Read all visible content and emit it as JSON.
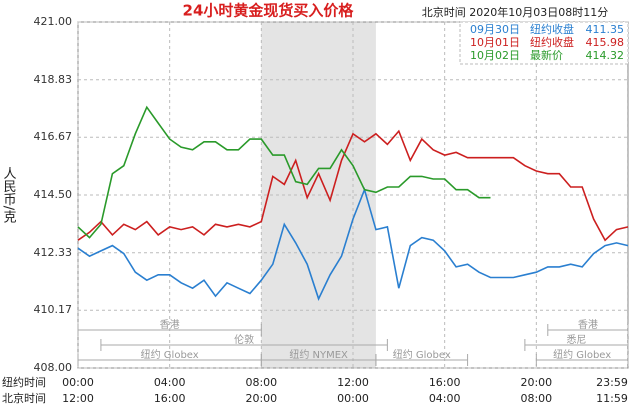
{
  "chart_data": {
    "type": "line",
    "title": "24小时黄金现货买入价格",
    "subtitle": "北京时间 2020年10月03日08时11分",
    "ylabel": "人民币/克",
    "ylim": [
      408,
      421
    ],
    "yticks": [
      {
        "value": 408,
        "label": "408.00"
      },
      410.17,
      412.33,
      {
        "value": 414.5,
        "label": "414.50"
      },
      416.67,
      418.83,
      {
        "value": 421,
        "label": "421.00"
      }
    ],
    "xlim": [
      0,
      24
    ],
    "x_axis_rows": [
      {
        "name": "纽约时间",
        "ticks": [
          {
            "value": 0,
            "label": "00:00"
          },
          {
            "value": 4,
            "label": "04:00"
          },
          {
            "value": 8,
            "label": "08:00"
          },
          {
            "value": 12,
            "label": "12:00"
          },
          {
            "value": 16,
            "label": "16:00"
          },
          {
            "value": 20,
            "label": "20:00"
          },
          {
            "value": 23.98,
            "label": "23:59"
          }
        ]
      },
      {
        "name": "北京时间",
        "ticks": [
          {
            "value": 0,
            "label": "12:00"
          },
          {
            "value": 4,
            "label": "16:00"
          },
          {
            "value": 8,
            "label": "20:00"
          },
          {
            "value": 12,
            "label": "00:00"
          },
          {
            "value": 16,
            "label": "04:00"
          },
          {
            "value": 20,
            "label": "08:00"
          },
          {
            "value": 23.98,
            "label": "11:59"
          }
        ]
      }
    ],
    "grid": true,
    "sessions": [
      [
        {
          "name": "香港",
          "start": 0,
          "end": 8
        },
        {
          "name": "香港",
          "start": 20.5,
          "end": 24
        }
      ],
      [
        {
          "name": "伦敦",
          "start": 1,
          "end": 13.5
        },
        {
          "name": "悉尼",
          "start": 19.5,
          "end": 24
        }
      ],
      [
        {
          "name": "纽约 Globex",
          "start": 0,
          "end": 8
        },
        {
          "name": "纽约 NYMEX",
          "start": 8,
          "end": 13,
          "shaded": true
        },
        {
          "name": "纽约 Globex",
          "start": 13,
          "end": 17
        },
        {
          "name": "纽约 Globex",
          "start": 20,
          "end": 24
        }
      ]
    ],
    "series": [
      {
        "name": "09月30日",
        "note": "纽约收盘",
        "last": 411.35,
        "color": "#2a7fd0",
        "x": [
          0,
          0.5,
          1,
          1.5,
          2,
          2.5,
          3,
          3.5,
          4,
          4.5,
          5,
          5.5,
          6,
          6.5,
          7,
          7.5,
          8,
          8.5,
          9,
          9.5,
          10,
          10.5,
          11,
          11.5,
          12,
          12.5,
          13,
          13.5,
          14,
          14.5,
          15,
          15.5,
          16,
          16.5,
          17,
          17.5,
          18,
          18.5,
          19,
          19.5,
          20,
          20.5,
          21,
          21.5,
          22,
          22.5,
          23,
          23.5,
          24
        ],
        "values": [
          412.5,
          412.2,
          412.4,
          412.6,
          412.3,
          411.6,
          411.3,
          411.5,
          411.5,
          411.2,
          411.0,
          411.3,
          410.7,
          411.2,
          411.0,
          410.8,
          411.3,
          411.9,
          413.4,
          412.7,
          411.9,
          410.6,
          411.5,
          412.2,
          413.6,
          414.7,
          413.2,
          413.3,
          411.0,
          412.6,
          412.9,
          412.8,
          412.4,
          411.8,
          411.9,
          411.6,
          411.4,
          411.4,
          411.4,
          411.5,
          411.6,
          411.8,
          411.8,
          411.9,
          411.8,
          412.3,
          412.6,
          412.7,
          412.6
        ]
      },
      {
        "name": "10月01日",
        "note": "纽约收盘",
        "last": 415.98,
        "color": "#cc1f1f",
        "x": [
          0,
          0.5,
          1,
          1.5,
          2,
          2.5,
          3,
          3.5,
          4,
          4.5,
          5,
          5.5,
          6,
          6.5,
          7,
          7.5,
          8,
          8.5,
          9,
          9.5,
          10,
          10.5,
          11,
          11.5,
          12,
          12.5,
          13,
          13.5,
          14,
          14.5,
          15,
          15.5,
          16,
          16.5,
          17,
          17.5,
          18,
          18.5,
          19,
          19.5,
          20,
          20.5,
          21,
          21.5,
          22,
          22.5,
          23,
          23.5,
          24
        ],
        "values": [
          412.8,
          413.1,
          413.5,
          413.0,
          413.4,
          413.2,
          413.5,
          413.0,
          413.3,
          413.2,
          413.3,
          413.0,
          413.4,
          413.3,
          413.4,
          413.3,
          413.5,
          415.2,
          414.9,
          415.8,
          414.4,
          415.3,
          414.3,
          415.8,
          416.8,
          416.5,
          416.8,
          416.4,
          416.9,
          415.8,
          416.6,
          416.2,
          416.0,
          416.1,
          415.9,
          415.9,
          415.9,
          415.9,
          415.9,
          415.6,
          415.4,
          415.3,
          415.3,
          414.8,
          414.8,
          413.6,
          412.8,
          413.2,
          413.3
        ]
      },
      {
        "name": "10月02日",
        "note": "最新价",
        "last": 414.32,
        "color": "#2a9a2a",
        "x": [
          0,
          0.5,
          1,
          1.5,
          2,
          2.5,
          3,
          3.5,
          4,
          4.5,
          5,
          5.5,
          6,
          6.5,
          7,
          7.5,
          8,
          8.5,
          9,
          9.5,
          10,
          10.5,
          11,
          11.5,
          12,
          12.5,
          13,
          13.5,
          14,
          14.5,
          15,
          15.5,
          16,
          16.5,
          17,
          17.5,
          18
        ],
        "values": [
          413.3,
          412.9,
          413.4,
          415.3,
          415.6,
          416.8,
          417.8,
          417.2,
          416.6,
          416.3,
          416.2,
          416.5,
          416.5,
          416.2,
          416.2,
          416.6,
          416.6,
          416.0,
          416.0,
          415.0,
          414.9,
          415.5,
          415.5,
          416.2,
          415.6,
          414.7,
          414.6,
          414.8,
          414.8,
          415.2,
          415.2,
          415.1,
          415.1,
          414.7,
          414.7,
          414.4,
          414.4
        ]
      }
    ]
  }
}
